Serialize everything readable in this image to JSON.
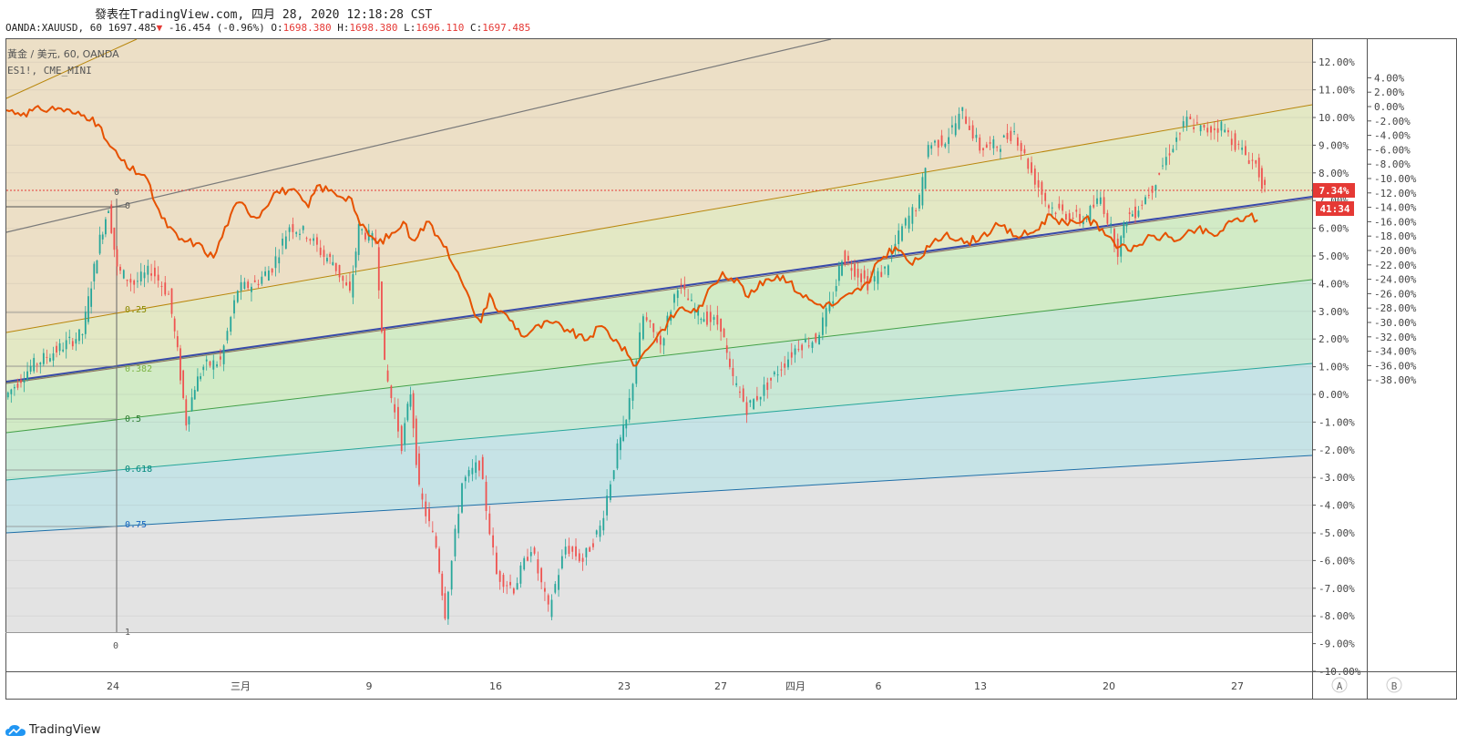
{
  "header": {
    "published": "發表在TradingView.com, 四月 28, 2020 12:18:28 CST",
    "symbol_line": "OANDA:XAUUSD, 60",
    "last": "1697.485",
    "change": "-16.454 (-0.96%)",
    "ohlc": [
      {
        "k": "O:",
        "v": "1698.380"
      },
      {
        "k": "H:",
        "v": "1698.380"
      },
      {
        "k": "L:",
        "v": "1696.110"
      },
      {
        "k": "C:",
        "v": "1697.485"
      }
    ]
  },
  "legend": {
    "line1": "黃金 / 美元, 60, OANDA",
    "line2": "ES1!, CME_MINI"
  },
  "footer": {
    "brand": "TradingView"
  },
  "colors": {
    "gold_candle_up": "#26a69a",
    "gold_candle_down": "#ef5350",
    "es_line": "#e65100",
    "price_badge": "#e53935",
    "fib_0": "#ecdfc6",
    "fib_025": "#e3e8c4",
    "fib_0382": "#d2ebc6",
    "fib_05": "#c9e8d6",
    "fib_0618": "#c6e3e6",
    "fib_075_1": "#e3e3e3"
  },
  "chart_data": {
    "type": "line",
    "series": [
      {
        "name": "黃金 / 美元, 60, OANDA",
        "axis": "A"
      },
      {
        "name": "ES1!, CME_MINI",
        "axis": "B"
      }
    ],
    "x_ticks": [
      "24",
      "三月",
      "9",
      "16",
      "23",
      "27",
      "四月",
      "6",
      "13",
      "20",
      "27"
    ],
    "axis_a": {
      "ticks": [
        "12.00%",
        "11.00%",
        "10.00%",
        "9.00%",
        "8.00%",
        "7.00%",
        "6.00%",
        "5.00%",
        "4.00%",
        "3.00%",
        "2.00%",
        "1.00%",
        "0.00%",
        "-1.00%",
        "-2.00%",
        "-3.00%",
        "-4.00%",
        "-5.00%",
        "-6.00%",
        "-7.00%",
        "-8.00%",
        "-9.00%",
        "-10.00%"
      ],
      "label": "A"
    },
    "axis_b": {
      "ticks": [
        "4.00%",
        "2.00%",
        "0.00%",
        "-2.00%",
        "-4.00%",
        "-6.00%",
        "-8.00%",
        "-10.00%",
        "-12.00%",
        "-14.00%",
        "-16.00%",
        "-18.00%",
        "-20.00%",
        "-22.00%",
        "-24.00%",
        "-26.00%",
        "-28.00%",
        "-30.00%",
        "-32.00%",
        "-34.00%",
        "-36.00%",
        "-38.00%"
      ],
      "label": "B"
    },
    "fib_levels": [
      "0",
      "0.25",
      "0.382",
      "0.5",
      "0.618",
      "0.75",
      "1"
    ],
    "fib_extra_label": "0",
    "markers": {
      "gold_last": "7.34%",
      "countdown": "41:34",
      "es_last": "-15.75%"
    },
    "gold_pct": [
      [
        0,
        -0.1
      ],
      [
        3,
        1.0
      ],
      [
        6,
        1.6
      ],
      [
        9,
        2.2
      ],
      [
        10,
        4.0
      ],
      [
        11,
        5.6
      ],
      [
        12,
        6.8
      ],
      [
        13,
        4.5
      ],
      [
        15,
        4.0
      ],
      [
        17,
        4.5
      ],
      [
        19,
        3.6
      ],
      [
        20,
        1.5
      ],
      [
        21,
        -1.0
      ],
      [
        22,
        0.3
      ],
      [
        23,
        1.0
      ],
      [
        25,
        1.2
      ],
      [
        27,
        3.8
      ],
      [
        29,
        4.0
      ],
      [
        31,
        4.6
      ],
      [
        33,
        6.1
      ],
      [
        35,
        5.8
      ],
      [
        37,
        5.0
      ],
      [
        38,
        4.8
      ],
      [
        40,
        3.6
      ],
      [
        41,
        6.0
      ],
      [
        43,
        5.5
      ],
      [
        44,
        1.0
      ],
      [
        46,
        -1.8
      ],
      [
        47,
        0.1
      ],
      [
        48,
        -3.5
      ],
      [
        50,
        -5.5
      ],
      [
        51,
        -7.9
      ],
      [
        53,
        -3.2
      ],
      [
        55,
        -2.5
      ],
      [
        57,
        -6.5
      ],
      [
        59,
        -7.0
      ],
      [
        61,
        -5.5
      ],
      [
        63,
        -7.8
      ],
      [
        65,
        -5.5
      ],
      [
        67,
        -6.0
      ],
      [
        69,
        -4.8
      ],
      [
        71,
        -2.0
      ],
      [
        72,
        -1.0
      ],
      [
        74,
        2.8
      ],
      [
        76,
        1.8
      ],
      [
        78,
        4.0
      ],
      [
        80,
        3.0
      ],
      [
        81,
        2.8
      ],
      [
        83,
        2.5
      ],
      [
        84,
        0.8
      ],
      [
        86,
        -0.5
      ],
      [
        88,
        0.2
      ],
      [
        90,
        1.0
      ],
      [
        92,
        1.8
      ],
      [
        94,
        2.0
      ],
      [
        96,
        3.5
      ],
      [
        97,
        5.0
      ],
      [
        100,
        4.0
      ],
      [
        102,
        4.5
      ],
      [
        104,
        6.0
      ],
      [
        106,
        7.0
      ],
      [
        107,
        9.0
      ],
      [
        109,
        9.2
      ],
      [
        111,
        10.2
      ],
      [
        113,
        8.9
      ],
      [
        115,
        9.0
      ],
      [
        117,
        9.5
      ],
      [
        119,
        8.0
      ],
      [
        121,
        6.8
      ],
      [
        123,
        6.5
      ],
      [
        125,
        6.3
      ],
      [
        127,
        7.1
      ],
      [
        129,
        5.2
      ],
      [
        130,
        6.4
      ],
      [
        131,
        6.6
      ],
      [
        133,
        7.5
      ],
      [
        135,
        8.8
      ],
      [
        137,
        9.9
      ],
      [
        139,
        9.5
      ],
      [
        141,
        9.7
      ],
      [
        143,
        8.9
      ],
      [
        145,
        8.3
      ],
      [
        146,
        7.34
      ]
    ],
    "es_pct": [
      [
        0,
        -0.5
      ],
      [
        2,
        -0.9
      ],
      [
        4,
        -0.4
      ],
      [
        6,
        -0.2
      ],
      [
        8,
        -1.0
      ],
      [
        10,
        -1.5
      ],
      [
        12,
        -5.5
      ],
      [
        14,
        -8.5
      ],
      [
        16,
        -9.5
      ],
      [
        18,
        -15.5
      ],
      [
        20,
        -18.5
      ],
      [
        22,
        -19.0
      ],
      [
        24,
        -21.0
      ],
      [
        26,
        -15.0
      ],
      [
        27,
        -13.3
      ],
      [
        29,
        -15.5
      ],
      [
        31,
        -12.0
      ],
      [
        33,
        -11.5
      ],
      [
        35,
        -14.0
      ],
      [
        36,
        -11.0
      ],
      [
        38,
        -12.0
      ],
      [
        40,
        -12.8
      ],
      [
        41,
        -16.5
      ],
      [
        43,
        -19.0
      ],
      [
        45,
        -17.5
      ],
      [
        46,
        -16.0
      ],
      [
        47,
        -18.5
      ],
      [
        49,
        -16.0
      ],
      [
        50,
        -18.0
      ],
      [
        51,
        -19.5
      ],
      [
        52,
        -22.5
      ],
      [
        53,
        -25.0
      ],
      [
        54,
        -28.0
      ],
      [
        55,
        -30.0
      ],
      [
        56,
        -26.0
      ],
      [
        57,
        -28.5
      ],
      [
        58,
        -29.0
      ],
      [
        60,
        -32.0
      ],
      [
        61,
        -31.0
      ],
      [
        63,
        -30.0
      ],
      [
        65,
        -31.0
      ],
      [
        67,
        -32.5
      ],
      [
        69,
        -30.5
      ],
      [
        71,
        -33.0
      ],
      [
        72,
        -34.5
      ],
      [
        73,
        -36.0
      ],
      [
        74,
        -34.0
      ],
      [
        76,
        -31.0
      ],
      [
        78,
        -28.0
      ],
      [
        80,
        -28.5
      ],
      [
        81,
        -26.5
      ],
      [
        83,
        -23.0
      ],
      [
        85,
        -24.5
      ],
      [
        86,
        -26.5
      ],
      [
        88,
        -24.0
      ],
      [
        90,
        -23.5
      ],
      [
        92,
        -26.0
      ],
      [
        94,
        -27.5
      ],
      [
        96,
        -27.5
      ],
      [
        98,
        -26.0
      ],
      [
        100,
        -24.5
      ],
      [
        101,
        -21.5
      ],
      [
        103,
        -19.5
      ],
      [
        105,
        -22.0
      ],
      [
        107,
        -19.5
      ],
      [
        109,
        -17.5
      ],
      [
        111,
        -19.0
      ],
      [
        113,
        -18.0
      ],
      [
        115,
        -16.5
      ],
      [
        117,
        -18.0
      ],
      [
        119,
        -17.5
      ],
      [
        121,
        -15.0
      ],
      [
        123,
        -16.5
      ],
      [
        125,
        -15.5
      ],
      [
        127,
        -17.0
      ],
      [
        129,
        -19.5
      ],
      [
        130,
        -20.0
      ],
      [
        132,
        -18.5
      ],
      [
        134,
        -18.0
      ],
      [
        136,
        -18.5
      ],
      [
        138,
        -17.0
      ],
      [
        140,
        -18.0
      ],
      [
        142,
        -16.0
      ],
      [
        144,
        -15.2
      ],
      [
        145,
        -15.75
      ]
    ]
  }
}
